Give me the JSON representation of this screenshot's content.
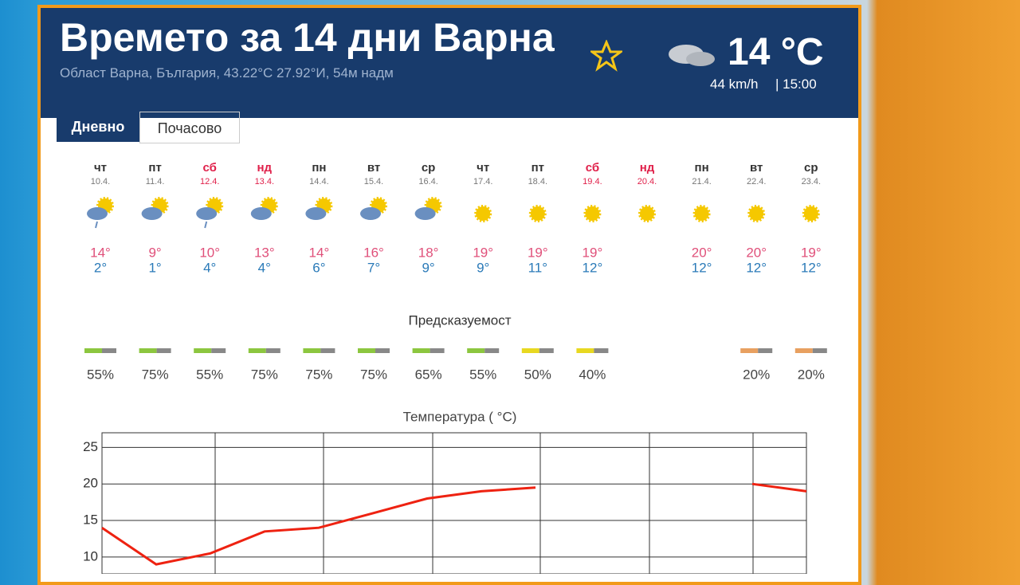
{
  "header": {
    "title": "Времето за 14 дни Варна",
    "subtitle": "Област Варна, България, 43.22°С 27.92°И, 54м надм",
    "current_temp": "14 °C",
    "wind": "44 km/h",
    "time": "| 15:00"
  },
  "tabs": [
    "Дневно",
    "Почасово"
  ],
  "days": [
    {
      "name": "чт",
      "date": "10.4.",
      "high": "14°",
      "low": "2°"
    },
    {
      "name": "пт",
      "date": "11.4.",
      "high": "9°",
      "low": "1°"
    },
    {
      "name": "сб",
      "date": "12.4.",
      "high": "10°",
      "low": "4°"
    },
    {
      "name": "нд",
      "date": "13.4.",
      "high": "13°",
      "low": "4°"
    },
    {
      "name": "пн",
      "date": "14.4.",
      "high": "14°",
      "low": "6°"
    },
    {
      "name": "вт",
      "date": "15.4.",
      "high": "16°",
      "low": "7°"
    },
    {
      "name": "ср",
      "date": "16.4.",
      "high": "18°",
      "low": "9°"
    },
    {
      "name": "чт",
      "date": "17.4.",
      "high": "19°",
      "low": "9°"
    },
    {
      "name": "пт",
      "date": "18.4.",
      "high": "19°",
      "low": "11°"
    },
    {
      "name": "сб",
      "date": "19.4.",
      "high": "19°",
      "low": "12°"
    },
    {
      "name": "нд",
      "date": "20.4.",
      "high": null,
      "low": null
    },
    {
      "name": "пн",
      "date": "21.4.",
      "high": "20°",
      "low": "12°"
    },
    {
      "name": "вт",
      "date": "22.4.",
      "high": "20°",
      "low": "12°"
    },
    {
      "name": "ср",
      "date": "23.4.",
      "high": "19°",
      "low": "12°"
    }
  ],
  "predictability": {
    "label": "Предсказуемост",
    "values": [
      "55%",
      "75%",
      "55%",
      "75%",
      "75%",
      "75%",
      "65%",
      "55%",
      "50%",
      "40%",
      null,
      null,
      "20%",
      "20%"
    ]
  },
  "temperature_chart": {
    "type": "line",
    "title": "Температура ( °C)",
    "ylim": [
      7.7,
      27
    ],
    "yticks": [
      10,
      15,
      20,
      25
    ],
    "series": [
      {
        "color": "#ee2211",
        "values": [
          14,
          9,
          10.5,
          13.5,
          14,
          16,
          18,
          19,
          19.5,
          null,
          null,
          null,
          20,
          19
        ]
      }
    ]
  }
}
